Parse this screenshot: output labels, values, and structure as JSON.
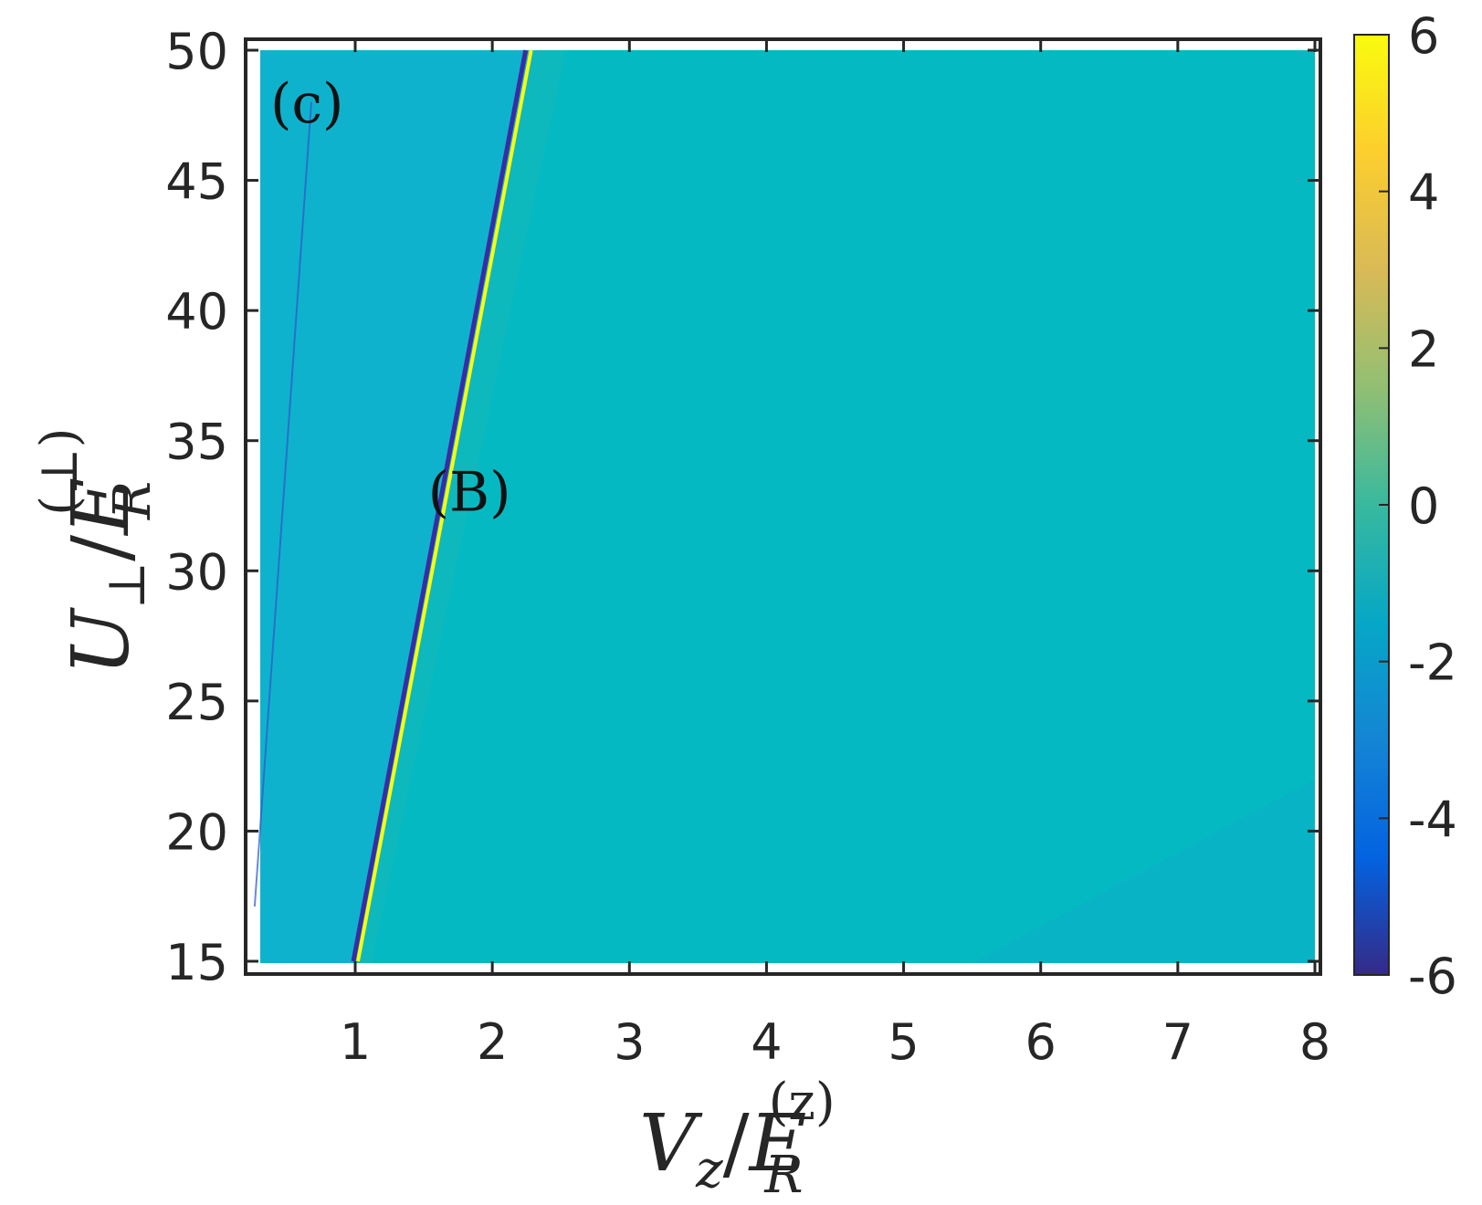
{
  "chart_data": {
    "type": "heatmap",
    "panel_label": "(c)",
    "xlabel": {
      "main": "V",
      "sub": "z",
      "slash": "/",
      "E": "E",
      "E_sub": "R",
      "E_sup": "(z)"
    },
    "ylabel": {
      "main": "U",
      "sub": "⊥",
      "slash": "/",
      "E": "E",
      "E_sub": "R",
      "E_sup": "(⊥)"
    },
    "xlim": [
      0.2,
      8.0
    ],
    "ylim": [
      15,
      50
    ],
    "xticks": [
      1,
      2,
      3,
      4,
      5,
      6,
      7,
      8
    ],
    "yticks": [
      15,
      20,
      25,
      30,
      35,
      40,
      45,
      50
    ],
    "colorbar": {
      "range": [
        -6,
        6
      ],
      "ticks": [
        6,
        4,
        2,
        0,
        -2,
        -4,
        -6
      ],
      "colormap": "parula"
    },
    "background_value": 0,
    "regions": [
      {
        "description_value": -0.5,
        "left_boundary_at_y15": 0.3,
        "left_boundary_at_y50": 0.3,
        "right_boundary_at_y15": 1.0,
        "right_boundary_at_y50": 2.27
      },
      {
        "description_value": -0.2,
        "x_from": 5.5,
        "x_to": 8.0,
        "y_from": 15,
        "y_to": 22
      }
    ],
    "lines": [
      {
        "name": "B",
        "value_low": -6,
        "value_high": 6,
        "points": [
          [
            1.0,
            15
          ],
          [
            2.27,
            50
          ]
        ]
      },
      {
        "name": "",
        "value_low": -3,
        "value_high": 1,
        "points": [
          [
            0.3,
            15
          ],
          [
            0.68,
            48
          ]
        ]
      }
    ],
    "annotations": [
      {
        "text": "(B)",
        "x": 1.73,
        "y": 33
      }
    ],
    "colors": {
      "background": "#05b9c2",
      "left_region": "#0fb2cd",
      "lower_right_region": "#08b3c6",
      "line_dark": "#3a2ca3",
      "line_bright": "#f9fb0e",
      "axis": "#262626"
    }
  }
}
